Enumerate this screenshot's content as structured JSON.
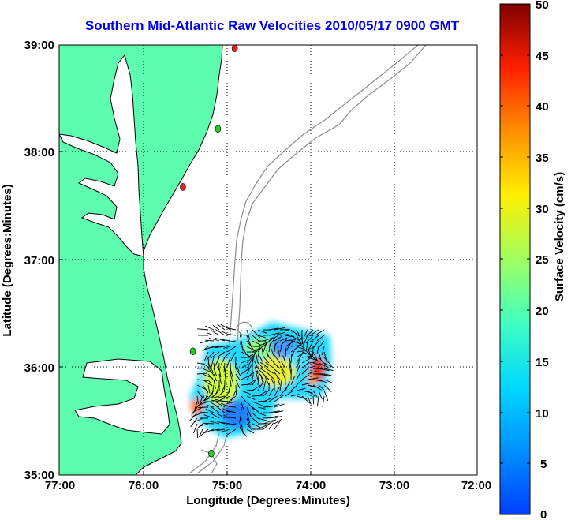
{
  "title": "Southern Mid-Atlantic Raw Velocities 2010/05/17 0900 GMT",
  "xlabel": "Longitude (Degrees:Minutes)",
  "ylabel": "Latitude (Degrees:Minutes)",
  "x_ticks": [
    "77:00",
    "76:00",
    "75:00",
    "74:00",
    "73:00",
    "72:00"
  ],
  "y_ticks": [
    "39:00",
    "38:00",
    "37:00",
    "36:00",
    "35:00"
  ],
  "colorbar": {
    "label": "Surface Velocity (cm/s)",
    "ticks": [
      "50",
      "45",
      "40",
      "35",
      "30",
      "25",
      "20",
      "15",
      "10",
      "5",
      "0"
    ],
    "min": 0,
    "max": 50,
    "colormap": "jet"
  },
  "colors": {
    "land": "#5dfcaf",
    "title": "#0000ee",
    "coast": "#000000",
    "bathymetry": "#8c8c8c",
    "station_green": "#22cc22",
    "station_red": "#ee2222"
  },
  "grid": "dotted",
  "stations": [
    {
      "name": "green-station",
      "lon": -75.18,
      "lat": 35.2
    },
    {
      "name": "green-station",
      "lon": -75.4,
      "lat": 36.15
    },
    {
      "name": "red-station",
      "lon": -75.52,
      "lat": 37.68
    },
    {
      "name": "green-station",
      "lon": -75.1,
      "lat": 38.22
    },
    {
      "name": "red-station",
      "lon": -74.9,
      "lat": 38.97
    }
  ]
}
